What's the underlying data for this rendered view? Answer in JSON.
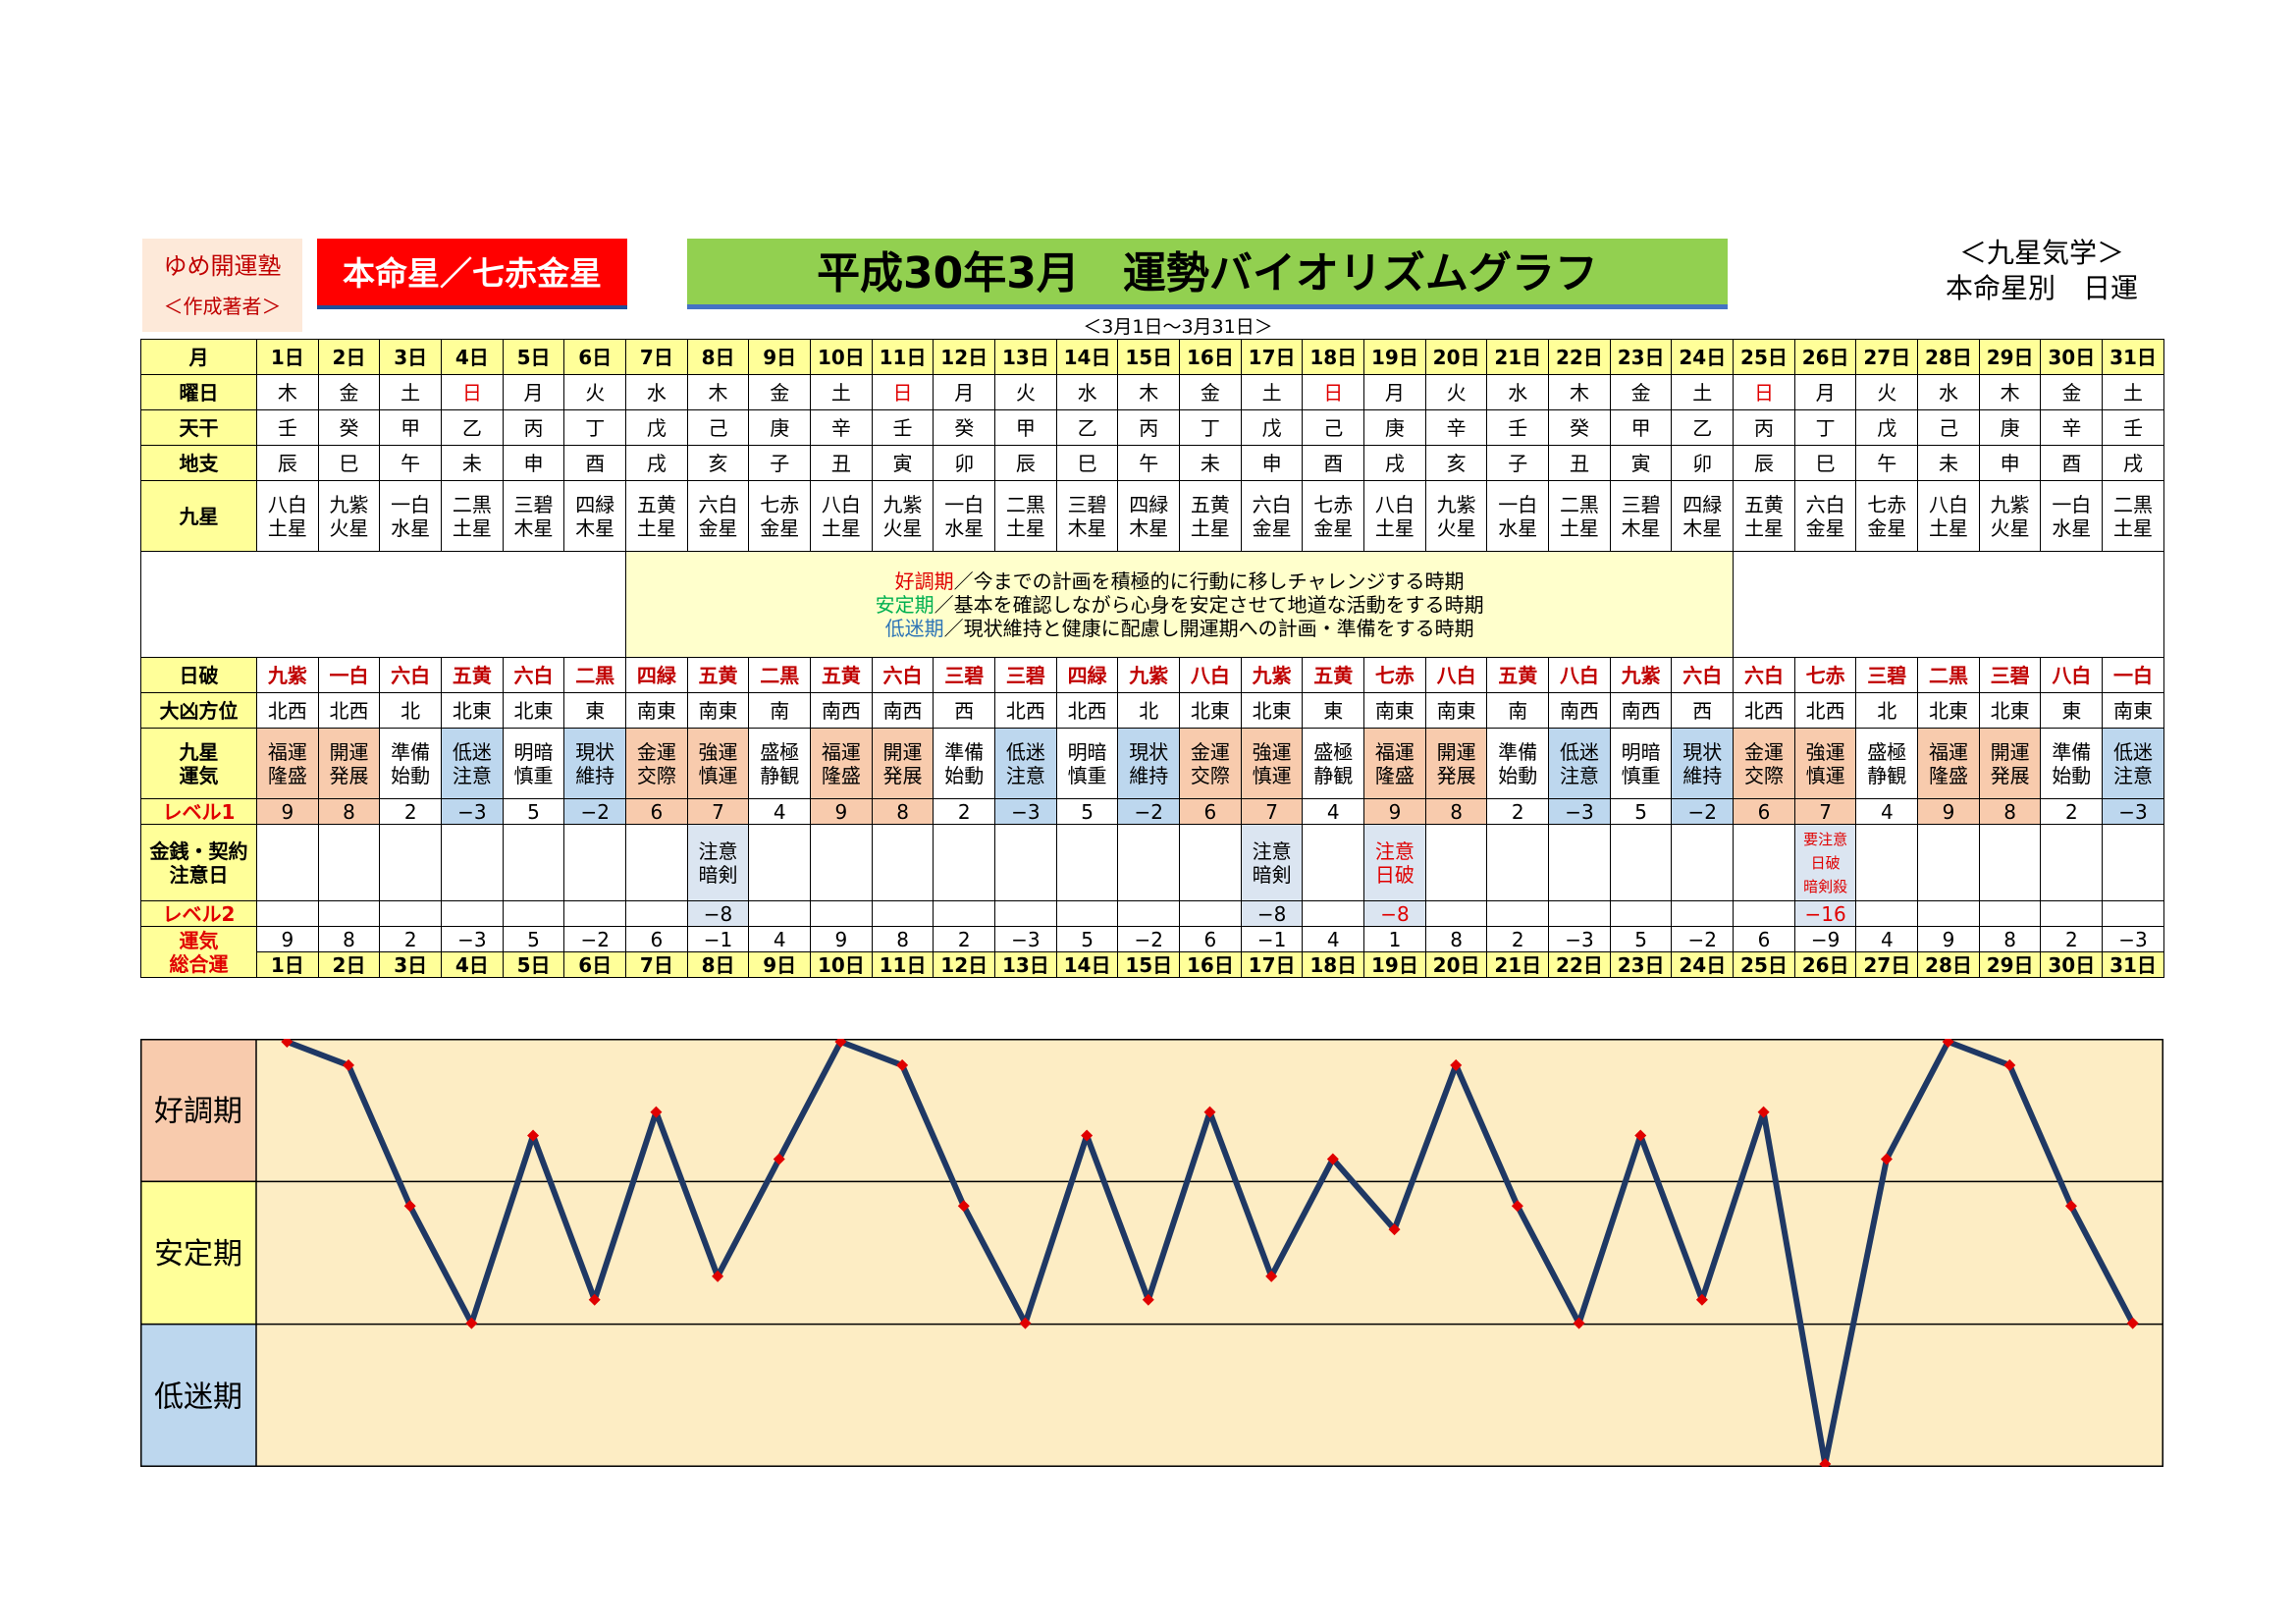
{
  "header": {
    "brand_name": "ゆめ開運塾",
    "brand_sub": "＜作成著者＞",
    "honmei": "本命星／七赤金星",
    "title": "平成30年3月　運勢バイオリズムグラフ",
    "range": "＜3月1日～3月31日＞",
    "kyusei_line1": "＜九星気学＞",
    "kyusei_line2": "本命星別　日運"
  },
  "row_labels": {
    "month": "月",
    "weekday": "曜日",
    "tenkan": "天干",
    "chishi": "地支",
    "star": "九星",
    "nippa": "日破",
    "daikyo": "大凶方位",
    "unki": "九星\n運気",
    "level1": "レベル1",
    "money": "金銭・契約\n注意日",
    "level2": "レベル2",
    "total": "運気\n総合運"
  },
  "legend": {
    "good_term": "好調期",
    "good_text": "／今までの計画を積極的に行動に移しチャレンジする時期",
    "stable_term": "安定期",
    "stable_text": "／基本を確認しながら心身を安定させて地道な活動をする時期",
    "low_term": "低迷期",
    "low_text": "／現状維持と健康に配慮し開運期への計画・準備をする時期"
  },
  "days": [
    "1日",
    "2日",
    "3日",
    "4日",
    "5日",
    "6日",
    "7日",
    "8日",
    "9日",
    "10日",
    "11日",
    "12日",
    "13日",
    "14日",
    "15日",
    "16日",
    "17日",
    "18日",
    "19日",
    "20日",
    "21日",
    "22日",
    "23日",
    "24日",
    "25日",
    "26日",
    "27日",
    "28日",
    "29日",
    "30日",
    "31日"
  ],
  "weekdays": [
    "木",
    "金",
    "土",
    "日",
    "月",
    "火",
    "水",
    "木",
    "金",
    "土",
    "日",
    "月",
    "火",
    "水",
    "木",
    "金",
    "土",
    "日",
    "月",
    "火",
    "水",
    "木",
    "金",
    "土",
    "日",
    "月",
    "火",
    "水",
    "木",
    "金",
    "土"
  ],
  "tenkan": [
    "壬",
    "癸",
    "甲",
    "乙",
    "丙",
    "丁",
    "戊",
    "己",
    "庚",
    "辛",
    "壬",
    "癸",
    "甲",
    "乙",
    "丙",
    "丁",
    "戊",
    "己",
    "庚",
    "辛",
    "壬",
    "癸",
    "甲",
    "乙",
    "丙",
    "丁",
    "戊",
    "己",
    "庚",
    "辛",
    "壬"
  ],
  "chishi": [
    "辰",
    "巳",
    "午",
    "未",
    "申",
    "酉",
    "戌",
    "亥",
    "子",
    "丑",
    "寅",
    "卯",
    "辰",
    "巳",
    "午",
    "未",
    "申",
    "酉",
    "戌",
    "亥",
    "子",
    "丑",
    "寅",
    "卯",
    "辰",
    "巳",
    "午",
    "未",
    "申",
    "酉",
    "戌"
  ],
  "stars": [
    "八白\n土星",
    "九紫\n火星",
    "一白\n水星",
    "二黒\n土星",
    "三碧\n木星",
    "四緑\n木星",
    "五黄\n土星",
    "六白\n金星",
    "七赤\n金星",
    "八白\n土星",
    "九紫\n火星",
    "一白\n水星",
    "二黒\n土星",
    "三碧\n木星",
    "四緑\n木星",
    "五黄\n土星",
    "六白\n金星",
    "七赤\n金星",
    "八白\n土星",
    "九紫\n火星",
    "一白\n水星",
    "二黒\n土星",
    "三碧\n木星",
    "四緑\n木星",
    "五黄\n土星",
    "六白\n金星",
    "七赤\n金星",
    "八白\n土星",
    "九紫\n火星",
    "一白\n水星",
    "二黒\n土星"
  ],
  "nippa": [
    "九紫",
    "一白",
    "六白",
    "五黄",
    "六白",
    "二黒",
    "四緑",
    "五黄",
    "二黒",
    "五黄",
    "六白",
    "三碧",
    "三碧",
    "四緑",
    "九紫",
    "八白",
    "九紫",
    "五黄",
    "七赤",
    "八白",
    "五黄",
    "八白",
    "九紫",
    "六白",
    "六白",
    "七赤",
    "三碧",
    "二黒",
    "三碧",
    "八白",
    "一白"
  ],
  "daikyo": [
    "北西",
    "北西",
    "北",
    "北東",
    "北東",
    "東",
    "南東",
    "南東",
    "南",
    "南西",
    "南西",
    "西",
    "北西",
    "北西",
    "北",
    "北東",
    "北東",
    "東",
    "南東",
    "南東",
    "南",
    "南西",
    "南西",
    "西",
    "北西",
    "北西",
    "北",
    "北東",
    "北東",
    "東",
    "南東"
  ],
  "unki": [
    "福運\n隆盛",
    "開運\n発展",
    "準備\n始動",
    "低迷\n注意",
    "明暗\n慎重",
    "現状\n維持",
    "金運\n交際",
    "強運\n慎運",
    "盛極\n静観",
    "福運\n隆盛",
    "開運\n発展",
    "準備\n始動",
    "低迷\n注意",
    "明暗\n慎重",
    "現状\n維持",
    "金運\n交際",
    "強運\n慎運",
    "盛極\n静観",
    "福運\n隆盛",
    "開運\n発展",
    "準備\n始動",
    "低迷\n注意",
    "明暗\n慎重",
    "現状\n維持",
    "金運\n交際",
    "強運\n慎運",
    "盛極\n静観",
    "福運\n隆盛",
    "開運\n発展",
    "準備\n始動",
    "低迷\n注意"
  ],
  "level1": [
    "9",
    "8",
    "2",
    "−3",
    "5",
    "−2",
    "6",
    "7",
    "4",
    "9",
    "8",
    "2",
    "−3",
    "5",
    "−2",
    "6",
    "7",
    "4",
    "9",
    "8",
    "2",
    "−3",
    "5",
    "−2",
    "6",
    "7",
    "4",
    "9",
    "8",
    "2",
    "−3"
  ],
  "money": [
    "",
    "",
    "",
    "",
    "",
    "",
    "",
    "注意\n暗剣",
    "",
    "",
    "",
    "",
    "",
    "",
    "",
    "",
    "注意\n暗剣",
    "",
    "注意\n日破",
    "",
    "",
    "",
    "",
    "",
    "",
    "要注意\n日破\n暗剣殺",
    "",
    "",
    "",
    "",
    ""
  ],
  "level2": [
    "",
    "",
    "",
    "",
    "",
    "",
    "",
    "−8",
    "",
    "",
    "",
    "",
    "",
    "",
    "",
    "",
    "−8",
    "",
    "−8",
    "",
    "",
    "",
    "",
    "",
    "",
    "−16",
    "",
    "",
    "",
    "",
    ""
  ],
  "total": [
    "9",
    "8",
    "2",
    "−3",
    "5",
    "−2",
    "6",
    "−1",
    "4",
    "9",
    "8",
    "2",
    "−3",
    "5",
    "−2",
    "6",
    "−1",
    "4",
    "1",
    "8",
    "2",
    "−3",
    "5",
    "−2",
    "6",
    "−9",
    "4",
    "9",
    "8",
    "2",
    "−3"
  ],
  "chart_data": {
    "type": "line",
    "x": [
      "1日",
      "2日",
      "3日",
      "4日",
      "5日",
      "6日",
      "7日",
      "8日",
      "9日",
      "10日",
      "11日",
      "12日",
      "13日",
      "14日",
      "15日",
      "16日",
      "17日",
      "18日",
      "19日",
      "20日",
      "21日",
      "22日",
      "23日",
      "24日",
      "25日",
      "26日",
      "27日",
      "28日",
      "29日",
      "30日",
      "31日"
    ],
    "values": [
      9,
      8,
      2,
      -3,
      5,
      -2,
      6,
      -1,
      4,
      9,
      8,
      2,
      -3,
      5,
      -2,
      6,
      -1,
      4,
      1,
      8,
      2,
      -3,
      5,
      -2,
      6,
      -9,
      4,
      9,
      8,
      2,
      -3
    ],
    "ylim": [
      -9,
      9
    ],
    "zones": [
      "好調期",
      "安定期",
      "低迷期"
    ],
    "line_color": "#1f3864",
    "marker_color": "#e00000",
    "zone_colors": {
      "good": "#f8cbad",
      "stable": "#ffff99",
      "low": "#bdd7ee",
      "plot_bg": "#fdedc4"
    }
  }
}
